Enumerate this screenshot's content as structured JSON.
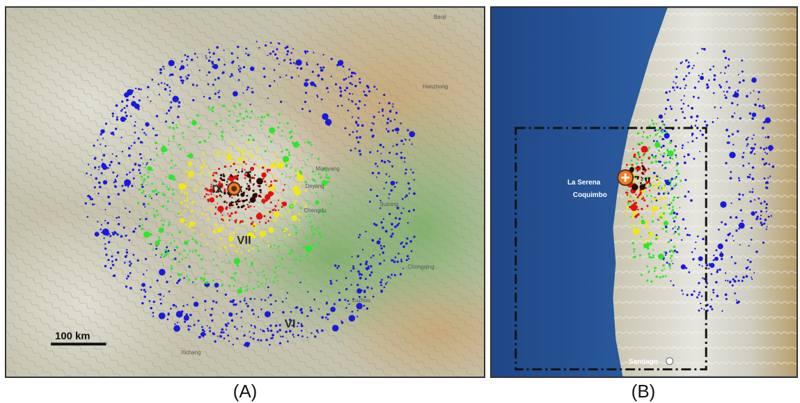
{
  "panels": {
    "a": {
      "caption": "(A)",
      "intensity_labels": [
        "IX",
        "VII",
        "VI"
      ],
      "scale_label": "100 km",
      "place_labels": [
        "Baoji",
        "Hanzhong",
        "Mianyang",
        "Deyang",
        "Chengdu",
        "Suining",
        "Chongqing",
        "Luzhou",
        "Xichang"
      ]
    },
    "b": {
      "caption": "(B)",
      "place_labels": [
        "La Serena",
        "Coquimbo",
        "Santiago"
      ]
    }
  },
  "colors": {
    "intensity_low": "#1a1adb",
    "intensity_mid": "#2ee62e",
    "intensity_high": "#f2e61a",
    "intensity_higher": "#e0140f",
    "intensity_highest": "#2a0a05",
    "epicenter": "#e87e2a",
    "ocean": "#2f5fa3"
  }
}
